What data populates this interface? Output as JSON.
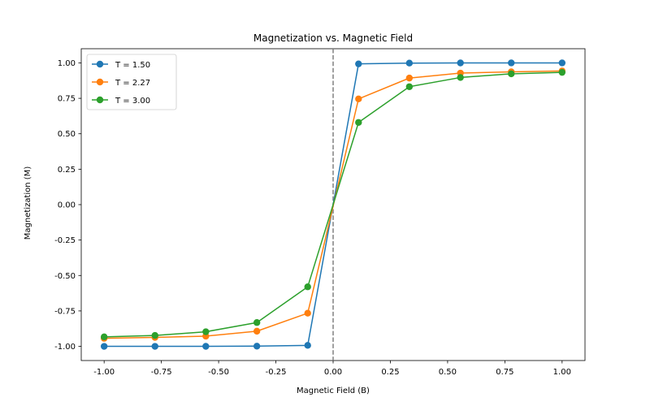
{
  "chart_data": {
    "type": "line",
    "title": "Magnetization vs. Magnetic Field",
    "xlabel": "Magnetic Field (B)",
    "ylabel": "Magnetization (M)",
    "xlim": [
      -1.1,
      1.1
    ],
    "ylim": [
      -1.1,
      1.1
    ],
    "xticks": [
      "-1.00",
      "-0.75",
      "-0.50",
      "-0.25",
      "0.00",
      "0.25",
      "0.50",
      "0.75",
      "1.00"
    ],
    "yticks": [
      "-1.00",
      "-0.75",
      "-0.50",
      "-0.25",
      "0.00",
      "0.25",
      "0.50",
      "0.75",
      "1.00"
    ],
    "grid": false,
    "legend_position": "top-left",
    "reference_line": {
      "x": 0.0,
      "style": "dashed",
      "color": "#808080"
    },
    "x": [
      -1.0,
      -0.778,
      -0.556,
      -0.333,
      -0.111,
      0.111,
      0.333,
      0.556,
      0.778,
      1.0
    ],
    "series": [
      {
        "name": "T = 1.50",
        "color": "#1f77b4",
        "values": [
          -0.9999,
          -0.9999,
          -0.9998,
          -0.9985,
          -0.993,
          0.993,
          0.9985,
          0.9998,
          0.9999,
          0.9999
        ]
      },
      {
        "name": "T = 2.27",
        "color": "#ff7f0e",
        "values": [
          -0.943,
          -0.937,
          -0.928,
          -0.893,
          -0.766,
          0.746,
          0.893,
          0.928,
          0.937,
          0.943
        ]
      },
      {
        "name": "T = 3.00",
        "color": "#2ca02c",
        "values": [
          -0.933,
          -0.923,
          -0.897,
          -0.832,
          -0.58,
          0.58,
          0.832,
          0.897,
          0.923,
          0.933
        ]
      }
    ]
  }
}
